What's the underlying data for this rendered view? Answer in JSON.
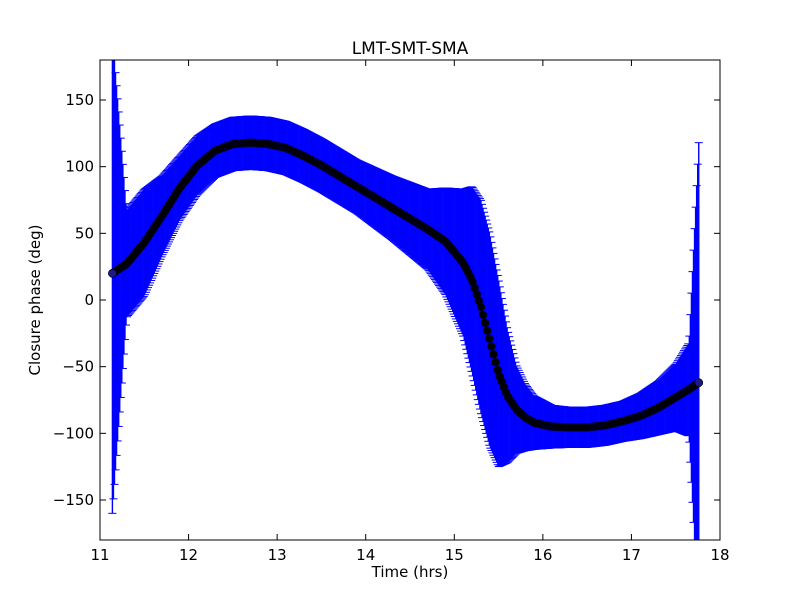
{
  "chart_data": {
    "type": "scatter",
    "title": "LMT-SMT-SMA",
    "xlabel": "Time (hrs)",
    "ylabel": "Closure phase (deg)",
    "xlim": [
      11,
      18
    ],
    "ylim": [
      -180,
      180
    ],
    "xticks": [
      11,
      12,
      13,
      14,
      15,
      16,
      17,
      18
    ],
    "yticks": [
      -150,
      -100,
      -50,
      0,
      50,
      100,
      150
    ],
    "xtick_labels": [
      "11",
      "12",
      "13",
      "14",
      "15",
      "16",
      "17",
      "18"
    ],
    "ytick_labels": [
      "−150",
      "−100",
      "−50",
      "0",
      "50",
      "100",
      "150"
    ],
    "grid": false,
    "colors": {
      "points": "#000000",
      "errorbars": "#0000ff"
    },
    "series": [
      {
        "x": [
          11.14,
          11.3,
          11.5,
          11.7,
          11.9,
          12.1,
          12.3,
          12.5,
          12.7,
          12.9,
          13.1,
          13.3,
          13.5,
          13.7,
          13.9,
          14.1,
          14.3,
          14.5,
          14.7,
          14.9,
          15.1,
          15.2,
          15.3,
          15.4,
          15.5,
          15.6,
          15.7,
          15.8,
          15.9,
          16.1,
          16.3,
          16.5,
          16.7,
          16.9,
          17.1,
          17.3,
          17.5,
          17.65,
          17.76
        ],
        "y": [
          20,
          27,
          43,
          63,
          84,
          101,
          112,
          117,
          118,
          117,
          114,
          108,
          101,
          93,
          85,
          77,
          69,
          61,
          53,
          44,
          28,
          15,
          -5,
          -30,
          -55,
          -72,
          -82,
          -88,
          -92,
          -95,
          -95.5,
          -95.5,
          -94,
          -91,
          -87,
          -81,
          -73,
          -67,
          -62
        ],
        "err": [
          180,
          40,
          40,
          30,
          24,
          22,
          20,
          20,
          20,
          20,
          20,
          20,
          20,
          20,
          20,
          22,
          24,
          27,
          30,
          40,
          55,
          70,
          80,
          80,
          70,
          50,
          33,
          25,
          20,
          16,
          15,
          15,
          15,
          15,
          17,
          20,
          25,
          35,
          180
        ]
      }
    ]
  }
}
